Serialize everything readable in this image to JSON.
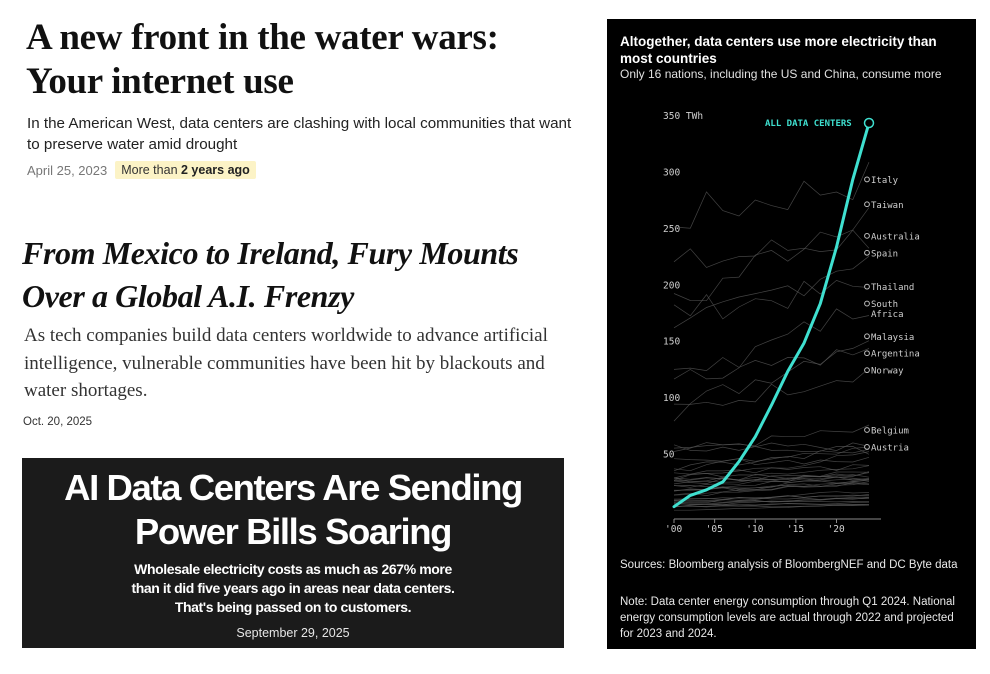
{
  "article1": {
    "title_lines": [
      "A new front in the water wars:",
      "Your internet use"
    ],
    "dek": "In the American West, data centers are clashing with local communities that want to preserve water amid drought",
    "date": "April 25, 2023",
    "badge_prefix": "More than",
    "badge_bold": "2 years ago"
  },
  "article2": {
    "title_lines": [
      "From Mexico to Ireland, Fury Mounts",
      "Over a Global A.I. Frenzy"
    ],
    "dek": "As tech companies build data centers worldwide to advance artificial intelligence, vulnerable communities have been hit by blackouts and water shortages.",
    "date": "Oct. 20, 2025"
  },
  "article3": {
    "title_lines": [
      "AI Data Centers Are Sending",
      "Power Bills Soaring"
    ],
    "dek_lines": [
      "Wholesale electricity costs as much as 267% more",
      "than it did five years ago in areas near data centers.",
      "That's being passed on to customers."
    ],
    "date": "September 29, 2025"
  },
  "chart_panel": {
    "title": "Altogether, data centers use more electricity than most countries",
    "subtitle": "Only 16 nations, including the US and China, consume more",
    "sources": "Sources: Bloomberg analysis of BloombergNEF and DC Byte data",
    "note": "Note: Data center energy consumption through Q1 2024. National energy consumption levels are actual through 2022 and projected for 2023 and 2024."
  },
  "chart_data": {
    "type": "line",
    "title": "Altogether, data centers use more electricity than most countries",
    "subtitle": "Only 16 nations, including the US and China, consume more",
    "ylabel": "TWh",
    "unit_label": "350 TWh",
    "ylim": [
      0,
      350
    ],
    "y_ticks": [
      50,
      100,
      150,
      200,
      250,
      300,
      350
    ],
    "x_ticks": [
      "'00",
      "'05",
      "'10",
      "'15",
      "'20"
    ],
    "x": [
      2000,
      2002,
      2004,
      2006,
      2008,
      2010,
      2012,
      2014,
      2016,
      2018,
      2020,
      2022,
      2024
    ],
    "highlight": {
      "name": "ALL DATA CENTERS",
      "color": "#3fe0d0",
      "values": [
        10,
        20,
        25,
        32,
        50,
        72,
        100,
        130,
        155,
        190,
        240,
        300,
        350
      ]
    },
    "countries": [
      {
        "name": "Italy",
        "value": 300
      },
      {
        "name": "Taiwan",
        "value": 278
      },
      {
        "name": "Australia",
        "value": 250
      },
      {
        "name": "Spain",
        "value": 235
      },
      {
        "name": "Thailand",
        "value": 205
      },
      {
        "name": "South Africa",
        "value": 190
      },
      {
        "name": "Malaysia",
        "value": 161
      },
      {
        "name": "Argentina",
        "value": 146
      },
      {
        "name": "Norway",
        "value": 131
      },
      {
        "name": "Belgium",
        "value": 78
      },
      {
        "name": "Austria",
        "value": 63
      }
    ]
  }
}
